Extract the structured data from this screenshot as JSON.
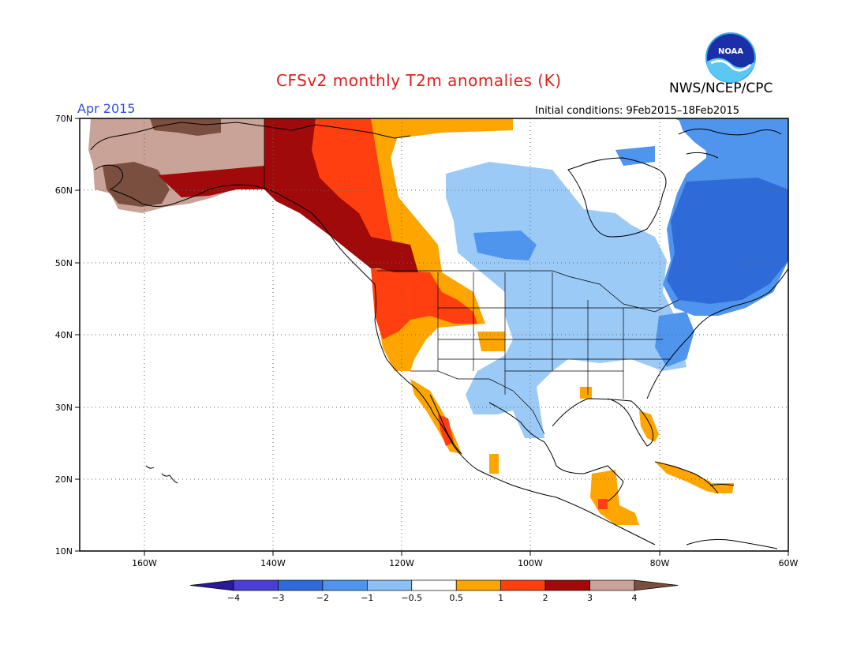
{
  "header": {
    "title": "CFSv2 monthly T2m anomalies (K)",
    "agency": "NWS/NCEP/CPC",
    "period": "Apr 2015",
    "initial_conditions": "Initial conditions: 9Feb2015–18Feb2015",
    "logo_text": "NOAA"
  },
  "map": {
    "projection": "lat-lon",
    "lon_range": [
      -170,
      -60
    ],
    "lat_range": [
      10,
      70
    ],
    "lat_labels": [
      "70N",
      "60N",
      "50N",
      "40N",
      "30N",
      "20N",
      "10N"
    ],
    "lon_labels": [
      "160W",
      "140W",
      "120W",
      "100W",
      "80W",
      "60W"
    ],
    "gridlines": "dotted"
  },
  "colorbar": {
    "labels": [
      "−4",
      "−3",
      "−2",
      "−1",
      "−0.5",
      "0.5",
      "1",
      "2",
      "3",
      "4"
    ],
    "colors": [
      "#2a1a9a",
      "#4a3fd0",
      "#2e6ad8",
      "#4f95ee",
      "#8cc0f4",
      "#ffffff",
      "#ffa500",
      "#ff3f10",
      "#a00a0a",
      "#c9a397",
      "#7a4f3f"
    ]
  },
  "anomaly_colors": {
    "cold_light": "#9ccaf6",
    "cold": "#4f95ee",
    "cold_strong": "#2e6ad8",
    "warm_light": "#ffa500",
    "warm": "#ff3f10",
    "warm_strong": "#a00a0a",
    "hot": "#c9a397",
    "hottest": "#7a4f3f"
  }
}
